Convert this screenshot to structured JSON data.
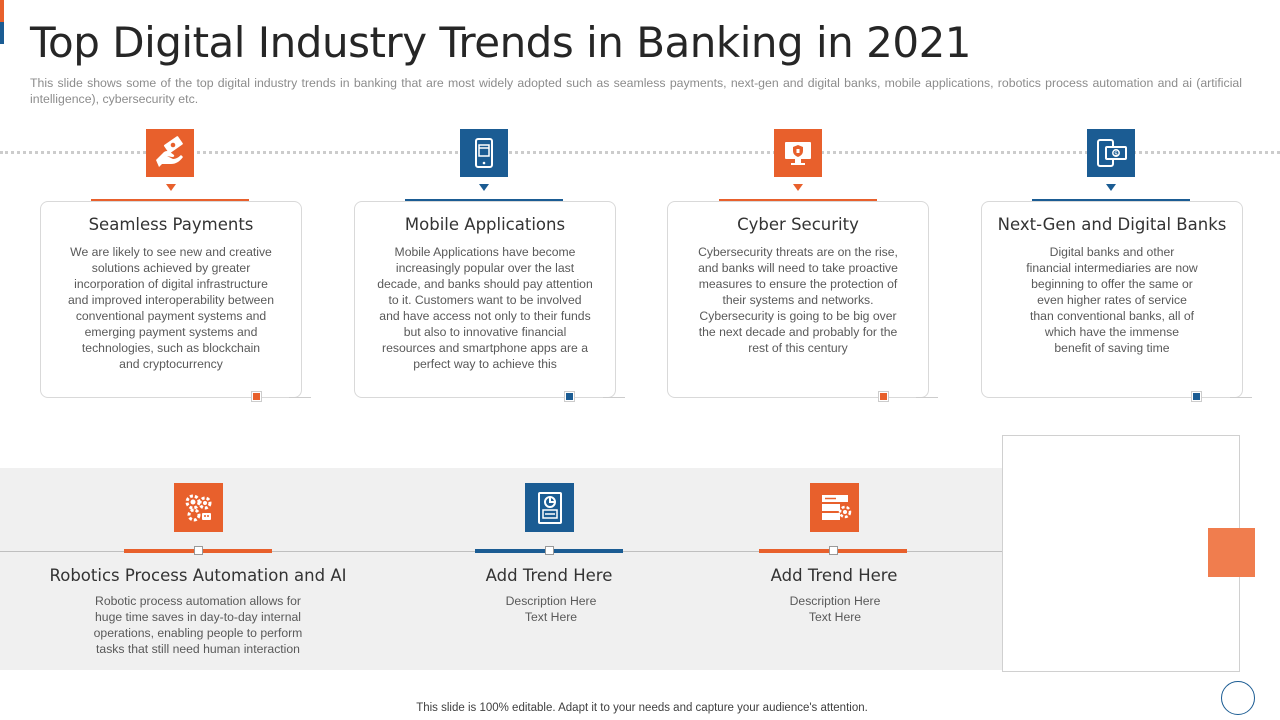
{
  "slide": {
    "title": "Top Digital Industry Trends in Banking in 2021",
    "subtitle": "This slide shows some of the top digital industry trends in banking that are most widely adopted such as seamless payments, next-gen and digital banks, mobile applications, robotics process automation and ai (artificial intelligence), cybersecurity etc."
  },
  "colors": {
    "orange": "#e8602c",
    "blue": "#1b5c93",
    "gray_band": "#f0f0f0"
  },
  "top_trends": [
    {
      "title": "Seamless Payments",
      "icon": "hand-money-icon",
      "color": "orange",
      "lines": [
        "We are likely to see new and creative",
        "solutions achieved  by greater",
        "incorporation of digital infrastructure",
        "and improved  interoperability between",
        "conventional  payment systems and",
        "emerging payment systems and",
        "technologies, such as blockchain",
        "and cryptocurrency"
      ]
    },
    {
      "title": "Mobile Applications",
      "icon": "mobile-calendar-icon",
      "color": "blue",
      "lines": [
        "Mobile Applications have  become",
        "increasingly popular  over  the last",
        "decade, and banks should pay attention",
        "to it. Customers want to be involved",
        "and have access not only to their funds",
        "but also to innovative  financial",
        "resources  and  smartphone apps  are a",
        "perfect way to achieve  this"
      ]
    },
    {
      "title": "Cyber Security",
      "icon": "monitor-shield-icon",
      "color": "orange",
      "lines": [
        "Cybersecurity threats are on the rise,",
        "and banks will need to take proactive",
        "measures to ensure the protection of",
        "their systems and networks.",
        "Cybersecurity is going to be big over",
        "the next decade and probably for the",
        "rest of this century"
      ]
    },
    {
      "title": "Next-Gen and Digital Banks",
      "icon": "mobile-banknote-icon",
      "color": "blue",
      "lines": [
        "Digital banks and other",
        "financial intermediaries  are now",
        "beginning to offer the same or",
        "even  higher rates of service",
        "than conventional  banks, all of",
        "which have  the immense",
        "benefit of saving time"
      ]
    }
  ],
  "bottom_trends": [
    {
      "title": "Robotics Process Automation  and AI",
      "icon": "gears-robot-icon",
      "color": "orange",
      "lines": [
        "Robotic process automation allows for",
        "huge time saves in day-to-day internal",
        "operations, enabling people to perform",
        "tasks that still need human interaction"
      ]
    },
    {
      "title": "Add Trend Here",
      "icon": "document-chart-icon",
      "color": "blue",
      "lines": [
        "Description Here",
        "Text Here"
      ]
    },
    {
      "title": "Add Trend Here",
      "icon": "server-settings-icon",
      "color": "orange",
      "lines": [
        "Description Here",
        "Text Here"
      ]
    }
  ],
  "footer": "This slide is 100% editable. Adapt it to your needs and capture your audience's attention."
}
